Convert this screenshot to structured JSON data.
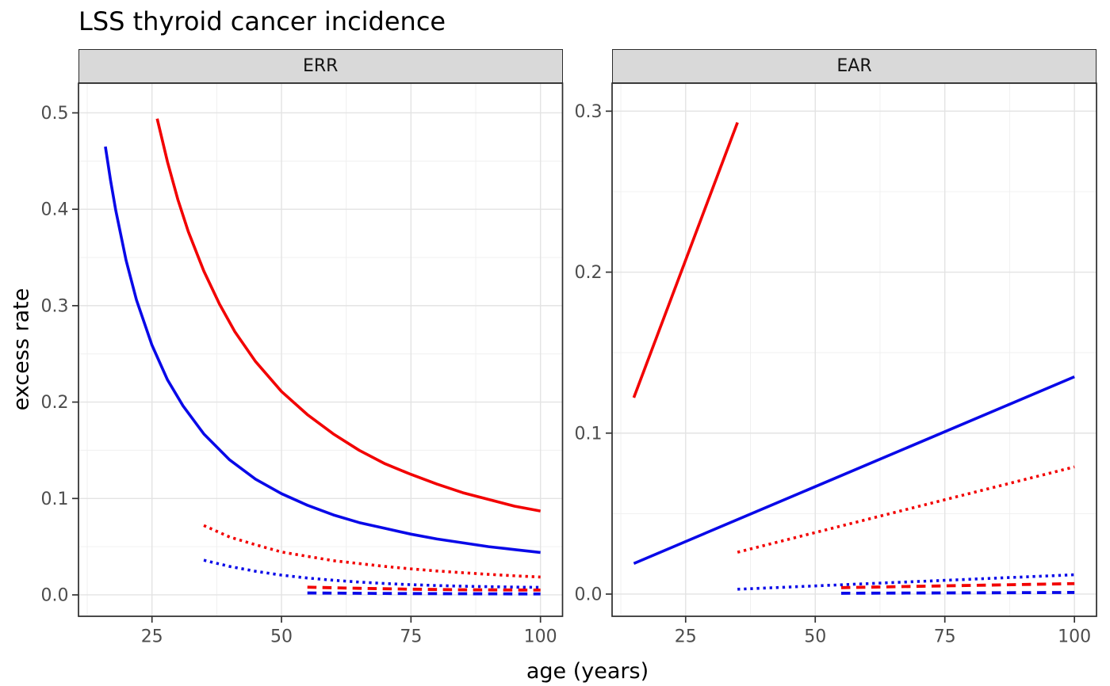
{
  "title": "LSS thyroid cancer incidence",
  "x_axis_title": "age (years)",
  "y_axis_title": "excess rate",
  "colors": {
    "red": "#f20000",
    "blue": "#0909e8",
    "grid_major": "#e3e3e3",
    "grid_minor": "#f0f0f0",
    "strip_bg": "#d9d9d9",
    "panel_border": "#2b2b2b",
    "panel_bg": "#ffffff",
    "tick_mark": "#333333",
    "tick_text": "#4d4d4d",
    "title_text": "#000000"
  },
  "chart_data": {
    "type": "line",
    "title": "LSS thyroid cancer incidence",
    "xlabel": "age (years)",
    "ylabel": "excess rate",
    "legend": "none",
    "grid": "major+minor",
    "facets": [
      {
        "label": "ERR",
        "xlim": [
          10.81,
          104.26
        ],
        "ylim": [
          -0.0222,
          0.5308
        ],
        "x_ticks": [
          25,
          50,
          75,
          100
        ],
        "x_tick_labels": [
          "25",
          "50",
          "75",
          "100"
        ],
        "x_minor": [
          12.5,
          37.5,
          62.5,
          87.5
        ],
        "y_ticks": [
          0.0,
          0.1,
          0.2,
          0.3,
          0.4,
          0.5
        ],
        "y_tick_labels": [
          "0.0",
          "0.1",
          "0.2",
          "0.3",
          "0.4",
          "0.5"
        ],
        "y_minor": [
          0.05,
          0.15,
          0.25,
          0.35,
          0.45
        ],
        "series": [
          {
            "name": "red-solid",
            "color": "red",
            "linetype": "solid",
            "points": [
              [
                26,
                0.494
              ],
              [
                28,
                0.449
              ],
              [
                30,
                0.41
              ],
              [
                32,
                0.377
              ],
              [
                35,
                0.336
              ],
              [
                38,
                0.302
              ],
              [
                41,
                0.273
              ],
              [
                45,
                0.242
              ],
              [
                50,
                0.211
              ],
              [
                55,
                0.187
              ],
              [
                60,
                0.167
              ],
              [
                65,
                0.15
              ],
              [
                70,
                0.136
              ],
              [
                75,
                0.125
              ],
              [
                80,
                0.115
              ],
              [
                85,
                0.106
              ],
              [
                90,
                0.099
              ],
              [
                95,
                0.092
              ],
              [
                100,
                0.087
              ]
            ]
          },
          {
            "name": "blue-solid",
            "color": "blue",
            "linetype": "solid",
            "points": [
              [
                16,
                0.465
              ],
              [
                17,
                0.43
              ],
              [
                18,
                0.399
              ],
              [
                20,
                0.347
              ],
              [
                22,
                0.306
              ],
              [
                25,
                0.259
              ],
              [
                28,
                0.223
              ],
              [
                31,
                0.196
              ],
              [
                35,
                0.167
              ],
              [
                40,
                0.14
              ],
              [
                45,
                0.12
              ],
              [
                50,
                0.105
              ],
              [
                55,
                0.093
              ],
              [
                60,
                0.083
              ],
              [
                65,
                0.075
              ],
              [
                70,
                0.069
              ],
              [
                75,
                0.063
              ],
              [
                80,
                0.058
              ],
              [
                85,
                0.054
              ],
              [
                90,
                0.05
              ],
              [
                95,
                0.047
              ],
              [
                100,
                0.044
              ]
            ]
          },
          {
            "name": "red-dotted",
            "color": "red",
            "linetype": "dotted",
            "points": [
              [
                35,
                0.072
              ],
              [
                40,
                0.06
              ],
              [
                45,
                0.052
              ],
              [
                50,
                0.0445
              ],
              [
                55,
                0.04
              ],
              [
                60,
                0.0355
              ],
              [
                65,
                0.0325
              ],
              [
                70,
                0.0295
              ],
              [
                75,
                0.027
              ],
              [
                80,
                0.0248
              ],
              [
                85,
                0.023
              ],
              [
                90,
                0.0213
              ],
              [
                95,
                0.0198
              ],
              [
                100,
                0.0185
              ]
            ]
          },
          {
            "name": "blue-dotted",
            "color": "blue",
            "linetype": "dotted",
            "points": [
              [
                35,
                0.036
              ],
              [
                40,
                0.0295
              ],
              [
                45,
                0.0245
              ],
              [
                50,
                0.0205
              ],
              [
                55,
                0.0175
              ],
              [
                60,
                0.0152
              ],
              [
                65,
                0.0133
              ],
              [
                70,
                0.0118
              ],
              [
                75,
                0.0106
              ],
              [
                80,
                0.0097
              ],
              [
                85,
                0.009
              ],
              [
                90,
                0.0085
              ],
              [
                95,
                0.0081
              ],
              [
                100,
                0.0078
              ]
            ]
          },
          {
            "name": "red-dashed",
            "color": "red",
            "linetype": "dashed",
            "points": [
              [
                55,
                0.008
              ],
              [
                65,
                0.0068
              ],
              [
                75,
                0.0059
              ],
              [
                85,
                0.0053
              ],
              [
                100,
                0.005
              ]
            ]
          },
          {
            "name": "blue-dashed",
            "color": "blue",
            "linetype": "dashed",
            "points": [
              [
                55,
                0.002
              ],
              [
                70,
                0.0015
              ],
              [
                85,
                0.0012
              ],
              [
                100,
                0.001
              ]
            ]
          }
        ]
      },
      {
        "label": "EAR",
        "xlim": [
          10.81,
          104.26
        ],
        "ylim": [
          -0.0138,
          0.3174
        ],
        "x_ticks": [
          25,
          50,
          75,
          100
        ],
        "x_tick_labels": [
          "25",
          "50",
          "75",
          "100"
        ],
        "x_minor": [
          12.5,
          37.5,
          62.5,
          87.5
        ],
        "y_ticks": [
          0.0,
          0.1,
          0.2,
          0.3
        ],
        "y_tick_labels": [
          "0.0",
          "0.1",
          "0.2",
          "0.3"
        ],
        "y_minor": [
          0.05,
          0.15,
          0.25
        ],
        "series": [
          {
            "name": "red-solid",
            "color": "red",
            "linetype": "solid",
            "points": [
              [
                15,
                0.122
              ],
              [
                35,
                0.293
              ]
            ]
          },
          {
            "name": "blue-solid",
            "color": "blue",
            "linetype": "solid",
            "points": [
              [
                15,
                0.019
              ],
              [
                100,
                0.135
              ]
            ]
          },
          {
            "name": "red-dotted",
            "color": "red",
            "linetype": "dotted",
            "points": [
              [
                35,
                0.026
              ],
              [
                100,
                0.079
              ]
            ]
          },
          {
            "name": "blue-dotted",
            "color": "blue",
            "linetype": "dotted",
            "points": [
              [
                35,
                0.003
              ],
              [
                100,
                0.012
              ]
            ]
          },
          {
            "name": "red-dashed",
            "color": "red",
            "linetype": "dashed",
            "points": [
              [
                55,
                0.004
              ],
              [
                100,
                0.0065
              ]
            ]
          },
          {
            "name": "blue-dashed",
            "color": "blue",
            "linetype": "dashed",
            "points": [
              [
                55,
                0.0005
              ],
              [
                100,
                0.001
              ]
            ]
          }
        ]
      }
    ]
  }
}
